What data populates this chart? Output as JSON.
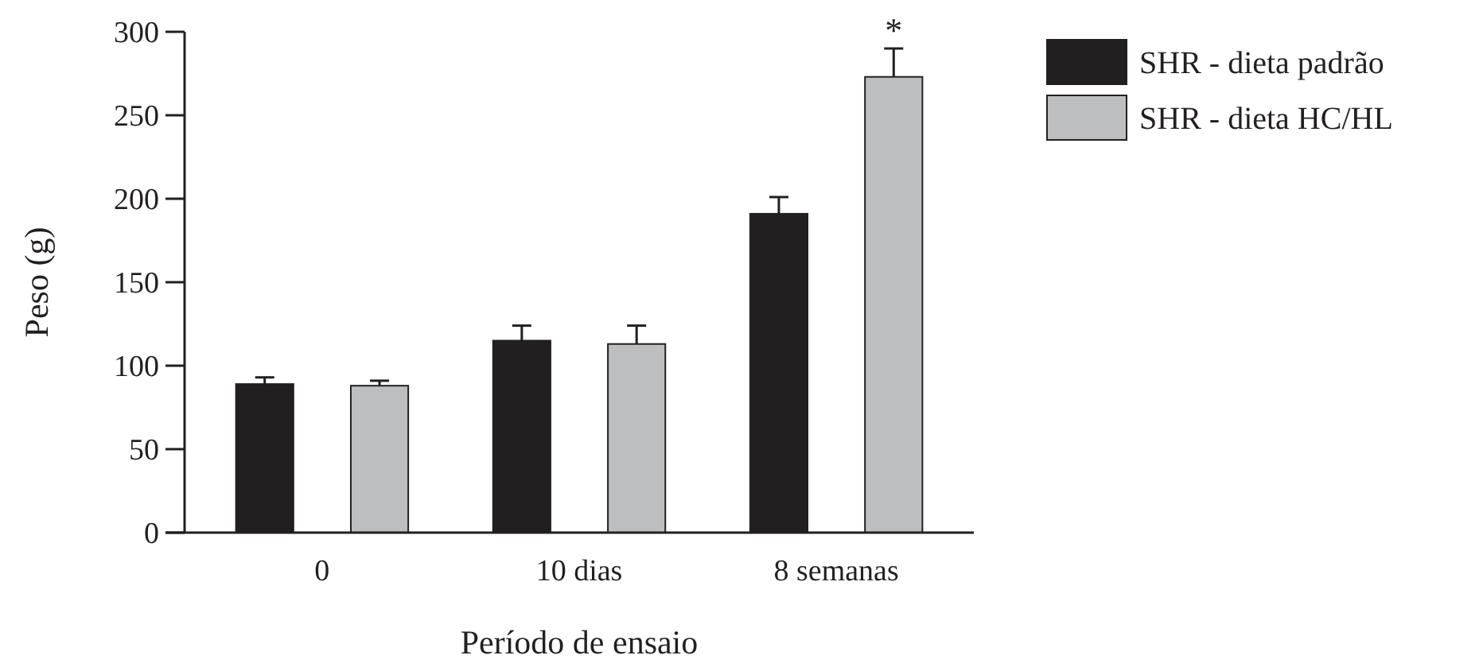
{
  "chart_data": {
    "type": "bar",
    "xlabel": "Período de ensaio",
    "ylabel": "Peso (g)",
    "categories": [
      "0",
      "10 dias",
      "8 semanas"
    ],
    "series": [
      {
        "name": "SHR - dieta padrão",
        "color": "#231f20",
        "values": [
          89,
          115,
          191
        ],
        "errors": [
          4,
          9,
          10
        ]
      },
      {
        "name": "SHR - dieta HC/HL",
        "color": "#bcbec0",
        "values": [
          88,
          113,
          273
        ],
        "errors": [
          3,
          11,
          17
        ]
      }
    ],
    "ylim": [
      0,
      300
    ],
    "yticks": [
      0,
      50,
      100,
      150,
      200,
      250,
      300
    ],
    "grid": false,
    "legend": "top right",
    "annotations": [
      "*"
    ]
  }
}
